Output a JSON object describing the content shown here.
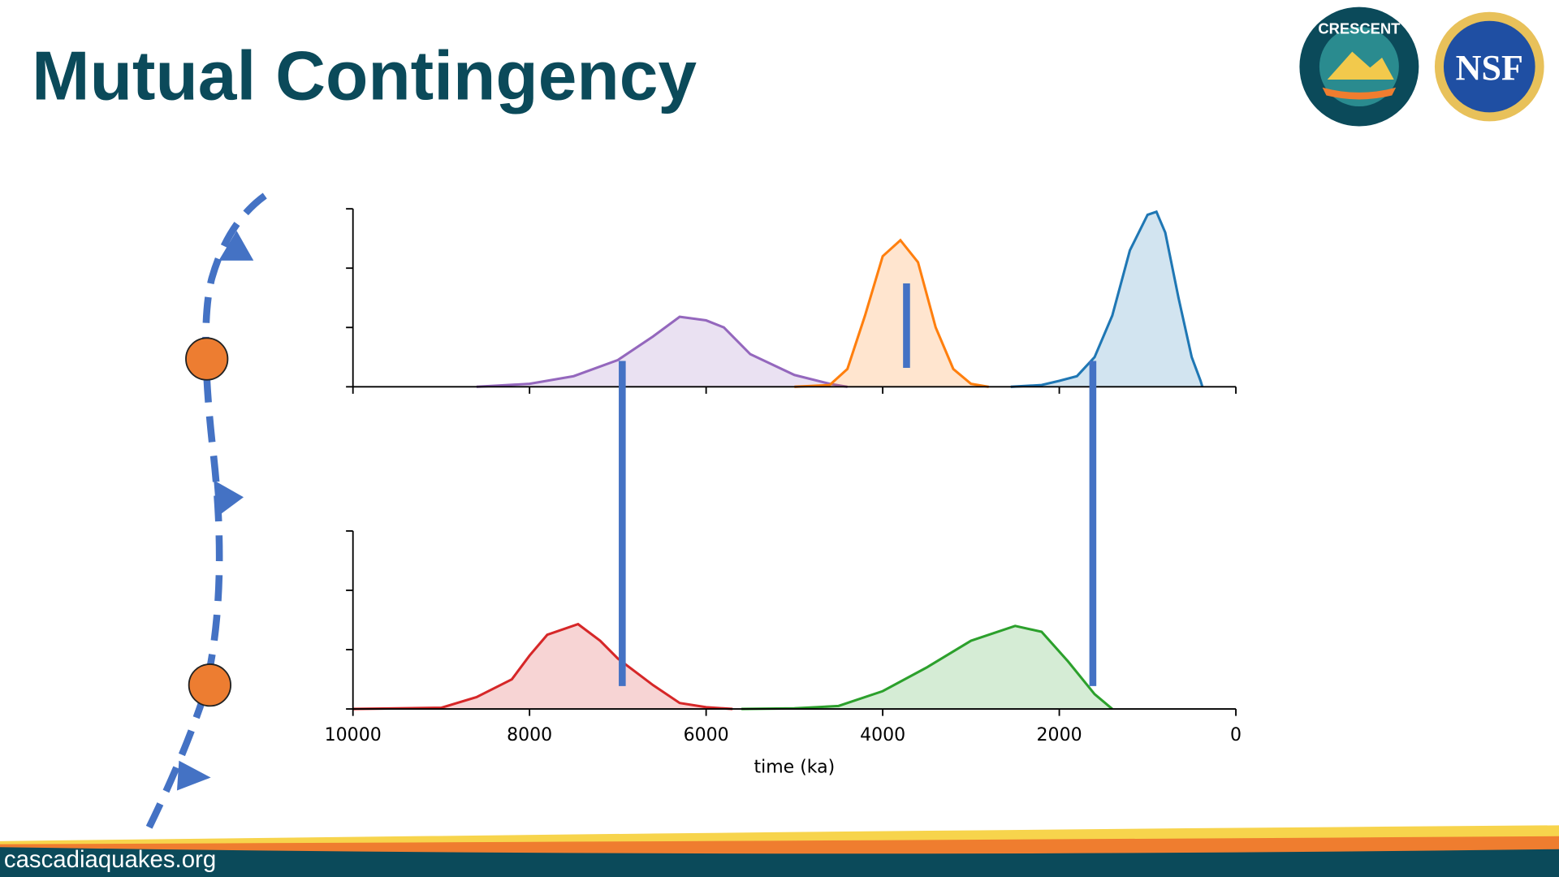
{
  "title": "Mutual Contingency",
  "footer": "cascadiaquakes.org",
  "logos": [
    "CRESCENT",
    "NSF"
  ],
  "chart_data": [
    {
      "type": "area",
      "xlim": [
        10000,
        0
      ],
      "xticks": [
        10000,
        8000,
        6000,
        4000,
        2000,
        0
      ],
      "xtick_labels": false,
      "ylim": [
        0,
        3
      ],
      "yticks": [
        0,
        1,
        2,
        3
      ],
      "ytick_labels": false,
      "series": [
        {
          "color": "#9467bd",
          "x": [
            8600,
            8000,
            7500,
            7000,
            6600,
            6300,
            6000,
            5800,
            5500,
            5000,
            4600,
            4400
          ],
          "values": [
            0,
            0.05,
            0.18,
            0.45,
            0.85,
            1.18,
            1.12,
            1.0,
            0.55,
            0.2,
            0.05,
            0
          ]
        },
        {
          "color": "#ff7f0e",
          "x": [
            5000,
            4600,
            4400,
            4200,
            4000,
            3800,
            3600,
            3400,
            3200,
            3000,
            2800
          ],
          "values": [
            0,
            0.03,
            0.3,
            1.2,
            2.2,
            2.47,
            2.1,
            1.0,
            0.3,
            0.05,
            0
          ]
        },
        {
          "color": "#1f77b4",
          "x": [
            2550,
            2200,
            2000,
            1800,
            1600,
            1400,
            1200,
            1000,
            900,
            800,
            650,
            500,
            400,
            380
          ],
          "values": [
            0,
            0.03,
            0.1,
            0.18,
            0.5,
            1.2,
            2.3,
            2.9,
            2.95,
            2.6,
            1.5,
            0.5,
            0.1,
            0
          ]
        }
      ],
      "vlines": [
        {
          "x": 6950,
          "span": "both"
        },
        {
          "x": 1620,
          "span": "both"
        },
        {
          "x": 3730,
          "span": "top"
        }
      ],
      "vline_color": "#4472c4"
    },
    {
      "type": "area",
      "xlim": [
        10000,
        0
      ],
      "xticks": [
        10000,
        8000,
        6000,
        4000,
        2000,
        0
      ],
      "xtick_labels": true,
      "xlabel": "time (ka)",
      "ylim": [
        0,
        3
      ],
      "yticks": [
        0,
        1,
        2,
        3
      ],
      "ytick_labels": false,
      "series": [
        {
          "color": "#d62728",
          "x": [
            10000,
            9000,
            8600,
            8200,
            8000,
            7800,
            7450,
            7200,
            7000,
            6600,
            6300,
            6000,
            5700
          ],
          "values": [
            0,
            0.02,
            0.2,
            0.5,
            0.9,
            1.25,
            1.43,
            1.15,
            0.85,
            0.4,
            0.1,
            0.03,
            0
          ]
        },
        {
          "color": "#2ca02c",
          "x": [
            5600,
            5000,
            4500,
            4000,
            3500,
            3000,
            2500,
            2200,
            1900,
            1600,
            1400
          ],
          "values": [
            0,
            0.01,
            0.05,
            0.3,
            0.7,
            1.15,
            1.4,
            1.3,
            0.8,
            0.25,
            0
          ]
        }
      ]
    }
  ]
}
